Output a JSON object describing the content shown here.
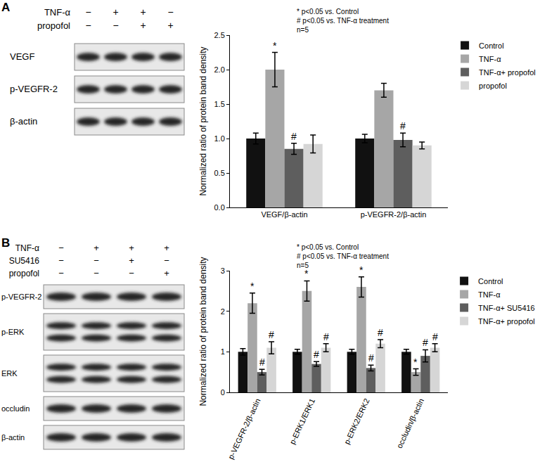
{
  "chart_data": [
    {
      "type": "bar",
      "y_label": "Normalized ratio of protein band density",
      "annotations": [
        "* p<0.05 vs. Control",
        "# p<0.05 vs. TNF-α treatment",
        "n=5"
      ],
      "categories": [
        "VEGF/β-actin",
        "p-VEGFR-2/β-actin"
      ],
      "series": [
        {
          "name": "Control",
          "color": "#111111",
          "values": [
            1.0,
            1.0
          ],
          "errors": [
            0.08,
            0.06
          ]
        },
        {
          "name": "TNF-α",
          "color": "#a6a6a6",
          "values": [
            2.0,
            1.7
          ],
          "errors": [
            0.25,
            0.1
          ],
          "significance": [
            "*",
            null
          ]
        },
        {
          "name": "TNF-α+ propofol",
          "color": "#5e5e5e",
          "values": [
            0.85,
            0.98
          ],
          "errors": [
            0.08,
            0.1
          ],
          "significance": [
            "#",
            "#"
          ]
        },
        {
          "name": "propofol",
          "color": "#d6d6d6",
          "values": [
            0.92,
            0.9
          ],
          "errors": [
            0.13,
            0.05
          ]
        }
      ],
      "ylim": [
        0,
        2.5
      ],
      "yticks": [
        {
          "value": 0,
          "label": "0.0"
        },
        0.5,
        {
          "value": 1,
          "label": "1.0"
        },
        1.5,
        {
          "value": 2,
          "label": "2.0"
        },
        2.5
      ],
      "grid": false,
      "legend": "right"
    },
    {
      "type": "bar",
      "y_label": "Normalized ratio of protein band density",
      "annotations": [
        "* p<0.05 vs. Control",
        "# p<0.05 vs. TNF-α treatment",
        "n=5"
      ],
      "categories": [
        "p-VEGFR-2/β-actin",
        "p-ERK1/ERK1",
        "p-ERK2/ERK2",
        "occludin/β-actin"
      ],
      "series": [
        {
          "name": "Control",
          "color": "#111111",
          "values": [
            1.0,
            1.0,
            1.0,
            1.0
          ],
          "errors": [
            0.08,
            0.06,
            0.06,
            0.06
          ]
        },
        {
          "name": "TNF-α",
          "color": "#a6a6a6",
          "values": [
            2.2,
            2.5,
            2.6,
            0.5
          ],
          "errors": [
            0.25,
            0.25,
            0.25,
            0.08
          ],
          "significance": [
            "*",
            "*",
            "*",
            "*"
          ]
        },
        {
          "name": "TNF-α+ SU5416",
          "color": "#5e5e5e",
          "values": [
            0.5,
            0.7,
            0.6,
            0.9
          ],
          "errors": [
            0.07,
            0.06,
            0.07,
            0.15
          ],
          "significance": [
            "#",
            "#",
            "#",
            "#"
          ]
        },
        {
          "name": "TNF-α+ propofol",
          "color": "#d6d6d6",
          "values": [
            1.1,
            1.1,
            1.2,
            1.1
          ],
          "errors": [
            0.15,
            0.1,
            0.1,
            0.1
          ],
          "significance": [
            "#",
            "#",
            "#",
            "#"
          ]
        }
      ],
      "ylim": [
        0,
        3
      ],
      "yticks": [
        0,
        1,
        2,
        3
      ],
      "grid": false,
      "legend": "right"
    }
  ],
  "blots": [
    {
      "panel": "A",
      "treatments": [
        {
          "name": "TNF-α",
          "signs": [
            "−",
            "+",
            "+",
            "−"
          ]
        },
        {
          "name": "propofol",
          "signs": [
            "−",
            "−",
            "+",
            "+"
          ]
        }
      ],
      "rows": [
        {
          "label": "VEGF",
          "bands": 1
        },
        {
          "label": "p-VEGFR-2",
          "bands": 1
        },
        {
          "label": "β-actin",
          "bands": 1
        }
      ]
    },
    {
      "panel": "B",
      "treatments": [
        {
          "name": "TNF-α",
          "signs": [
            "−",
            "+",
            "+",
            "+"
          ]
        },
        {
          "name": "SU5416",
          "signs": [
            "−",
            "−",
            "+",
            "−"
          ]
        },
        {
          "name": "propofol",
          "signs": [
            "−",
            "−",
            "−",
            "+"
          ]
        }
      ],
      "rows": [
        {
          "label": "p-VEGFR-2",
          "bands": 1
        },
        {
          "label": "p-ERK",
          "bands": 2
        },
        {
          "label": "ERK",
          "bands": 2
        },
        {
          "label": "occludin",
          "bands": 1
        },
        {
          "label": "β-actin",
          "bands": 1
        }
      ]
    }
  ]
}
